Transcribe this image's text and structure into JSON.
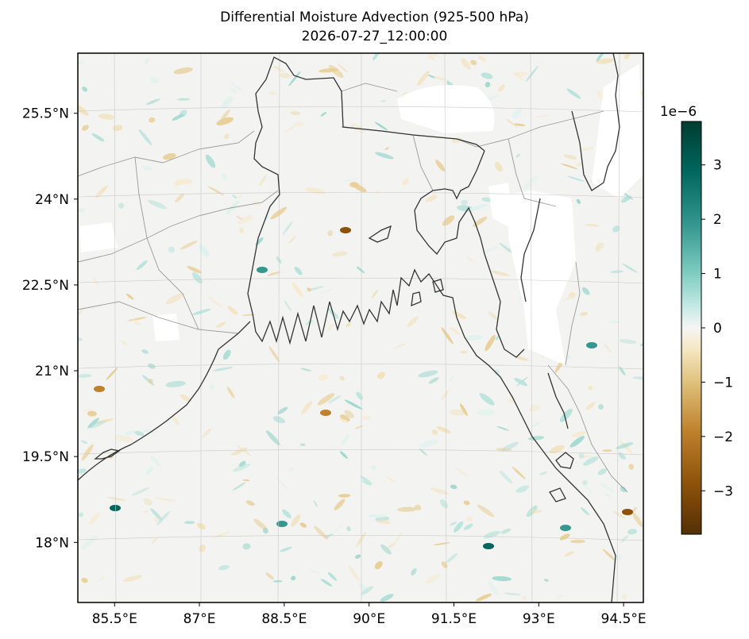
{
  "chart_data": {
    "type": "heatmap",
    "title": "Differential Moisture Advection (925-500 hPa)",
    "subtitle": "2026-07-27_12:00:00",
    "x_ticks": [
      "85.5°E",
      "87°E",
      "88.5°E",
      "90°E",
      "91.5°E",
      "93°E",
      "94.5°E"
    ],
    "x_tick_values": [
      85.5,
      87,
      88.5,
      90,
      91.5,
      93,
      94.5
    ],
    "y_ticks": [
      "25.5°N",
      "24°N",
      "22.5°N",
      "21°N",
      "19.5°N",
      "18°N"
    ],
    "y_tick_values": [
      25.5,
      24,
      22.5,
      21,
      19.5,
      18
    ],
    "xlim": [
      84.85,
      94.85
    ],
    "ylim": [
      16.95,
      26.55
    ],
    "colorbar": {
      "colormap": "BrBG",
      "range": [
        -3.8,
        3.8
      ],
      "ticks": [
        -3,
        -2,
        -1,
        0,
        1,
        2,
        3
      ],
      "tick_labels": [
        "−3",
        "−2",
        "−1",
        "0",
        "1",
        "2",
        "3"
      ],
      "scale_label": "1e−6"
    },
    "field_description_colors": {
      "negative": "#8c510a",
      "neutral": "#f5f5f5",
      "positive": "#01665e"
    },
    "coastline_color": "#333333",
    "border_color": "#999999",
    "gridlines": true
  }
}
